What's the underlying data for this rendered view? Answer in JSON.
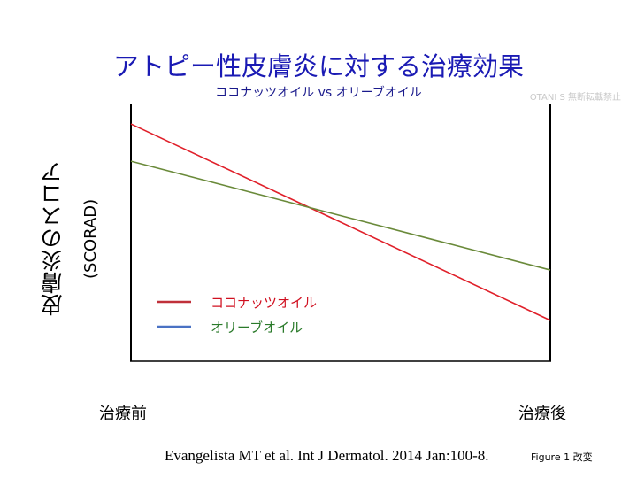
{
  "chart_data": {
    "type": "line",
    "title": "アトピー性皮膚炎に対する治療効果",
    "subtitle": "ココナッツオイル vs オリーブオイル",
    "watermark": "OTANI S 無断転載禁止",
    "ylabel": "皮膚炎のスコア",
    "ylabel_sub": "(SCORAD)",
    "xlabel": "",
    "categories": [
      "治療前",
      "治療後"
    ],
    "ylim": [
      0,
      100
    ],
    "grid": false,
    "legend_position": "bottom-left",
    "series": [
      {
        "name": "ココナッツオイル",
        "values": [
          92.4,
          15.9
        ],
        "color": "#e0202a",
        "legend_line_color": "#c0303a",
        "legend_text_color": "#d01020"
      },
      {
        "name": "オリーブオイル",
        "values": [
          77.9,
          35.5
        ],
        "color": "#6a8a3a",
        "legend_line_color": "#4a72c4",
        "legend_text_color": "#2a7a2a"
      }
    ],
    "citation": "Evangelista MT et al. Int J Dermatol. 2014 Jan:100-8.",
    "figure_note": "Figure 1 改変"
  }
}
